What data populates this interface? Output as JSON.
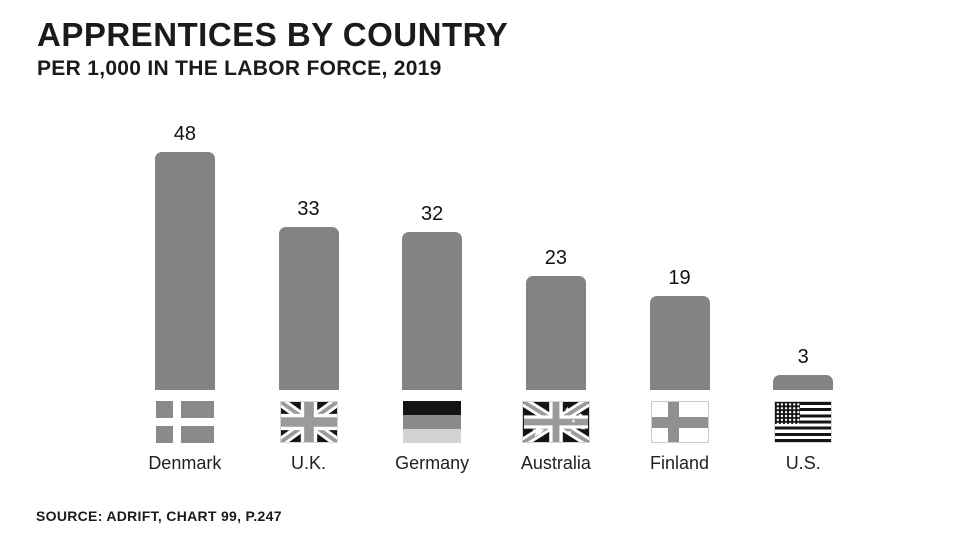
{
  "header": {
    "title": "APPRENTICES BY COUNTRY",
    "subtitle": "PER 1,000 IN THE LABOR FORCE, 2019"
  },
  "footer": {
    "source": "SOURCE: ADRIFT, CHART 99, P.247"
  },
  "colors": {
    "background": "#ffffff",
    "bar": "#838383",
    "text": "#1a1a1a",
    "flag_dark": "#141414",
    "flag_mid_gray": "#9a9a9a",
    "flag_light_gray": "#d3d3d3"
  },
  "chart_data": {
    "type": "bar",
    "title": "APPRENTICES BY COUNTRY",
    "subtitle": "PER 1,000 IN THE LABOR FORCE, 2019",
    "categories": [
      "Denmark",
      "U.K.",
      "Germany",
      "Australia",
      "Finland",
      "U.S."
    ],
    "values": [
      48,
      33,
      32,
      23,
      19,
      3
    ],
    "xlabel": "",
    "ylabel": "",
    "ylim": [
      0,
      50
    ],
    "grid": false,
    "legend": false,
    "bar_color": "#838383",
    "value_labels_shown": true,
    "flag_icons": [
      "denmark-flag-icon",
      "uk-flag-icon",
      "germany-flag-icon",
      "australia-flag-icon",
      "finland-flag-icon",
      "us-flag-icon"
    ],
    "source": "SOURCE: ADRIFT, CHART 99, P.247"
  }
}
